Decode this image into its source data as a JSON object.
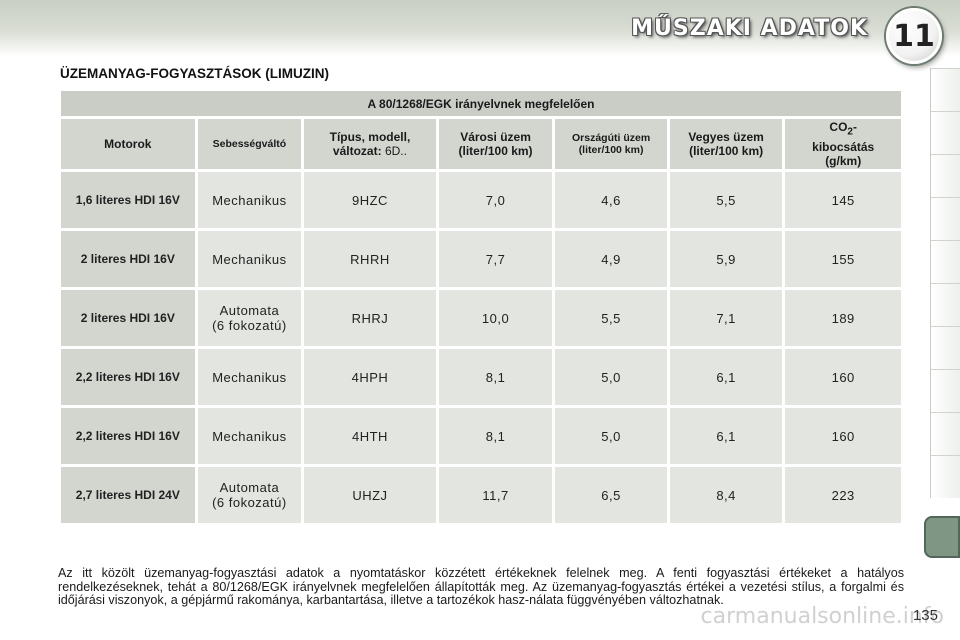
{
  "header": {
    "chapter_title": "MŰSZAKI ADATOK",
    "chapter_number": "11"
  },
  "section_title": "ÜZEMANYAG-FOGYASZTÁSOK (LIMUZIN)",
  "table": {
    "standard": "A 80/1268/EGK irányelvnek megfelelően",
    "headers": {
      "engine": "Motorok",
      "gearbox": "Sebességváltó",
      "type_prefix": "Típus, modell,",
      "type_label": "változat:",
      "type_value": "6D..",
      "urban_line1": "Városi üzem",
      "urban_line2": "(liter/100 km)",
      "extra_urban_line1": "Országúti üzem",
      "extra_urban_line2": "(liter/100 km)",
      "combined_line1": "Vegyes üzem",
      "combined_line2": "(liter/100 km)",
      "co2_prefix": "CO",
      "co2_sub": "2",
      "co2_suffix": "-",
      "co2_line2": "kibocsátás",
      "co2_line3": "(g/km)"
    },
    "rows": [
      {
        "engine": "1,6 literes HDI 16V",
        "gearbox": [
          "Mechanikus"
        ],
        "type": "9HZC",
        "urban": "7,0",
        "extra_urban": "4,6",
        "combined": "5,5",
        "co2": "145"
      },
      {
        "engine": "2 literes HDI 16V",
        "gearbox": [
          "Mechanikus"
        ],
        "type": "RHRH",
        "urban": "7,7",
        "extra_urban": "4,9",
        "combined": "5,9",
        "co2": "155"
      },
      {
        "engine": "2 literes HDI 16V",
        "gearbox": [
          "Automata",
          "(6 fokozatú)"
        ],
        "type": "RHRJ",
        "urban": "10,0",
        "extra_urban": "5,5",
        "combined": "7,1",
        "co2": "189"
      },
      {
        "engine": "2,2 literes HDI 16V",
        "gearbox": [
          "Mechanikus"
        ],
        "type": "4HPH",
        "urban": "8,1",
        "extra_urban": "5,0",
        "combined": "6,1",
        "co2": "160"
      },
      {
        "engine": "2,2 literes HDI 16V",
        "gearbox": [
          "Mechanikus"
        ],
        "type": "4HTH",
        "urban": "8,1",
        "extra_urban": "5,0",
        "combined": "6,1",
        "co2": "160"
      },
      {
        "engine": "2,7 literes HDI 24V",
        "gearbox": [
          "Automata",
          "(6 fokozatú)"
        ],
        "type": "UHZJ",
        "urban": "11,7",
        "extra_urban": "6,5",
        "combined": "8,4",
        "co2": "223"
      }
    ]
  },
  "footnote": "Az itt közölt üzemanyag-fogyasztási adatok a nyomtatáskor közzétett értékeknek felelnek meg. A fenti fogyasztási értékeket a hatályos rendelkezéseknek, tehát a 80/1268/EGK irányelvnek megfelelően állapították meg. Az üzemanyag-fogyasztás értékei a vezetési stílus, a forgalmi és időjárási viszonyok, a gépjármű rakománya, karbantartása, illetve a tartozékok hasz-nálata függvényében változhatnak.",
  "page_number": "135",
  "watermark": "carmanualsonline.info"
}
